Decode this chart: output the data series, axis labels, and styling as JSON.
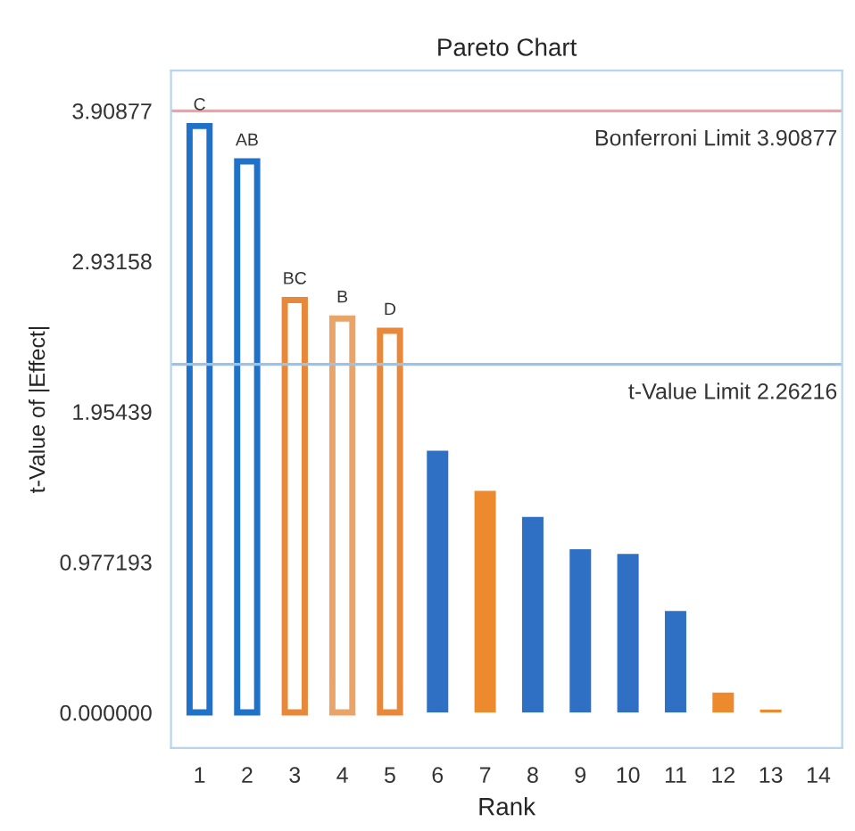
{
  "chart_data": {
    "type": "bar",
    "title": "Pareto Chart",
    "xlabel": "Rank",
    "ylabel": "t-Value of |Effect|",
    "categories": [
      "1",
      "2",
      "3",
      "4",
      "5",
      "6",
      "7",
      "8",
      "9",
      "10",
      "11",
      "12",
      "13",
      "14"
    ],
    "values": [
      3.81,
      3.58,
      2.68,
      2.56,
      2.48,
      1.7,
      1.44,
      1.27,
      1.06,
      1.03,
      0.66,
      0.13,
      0.02,
      null
    ],
    "colors": [
      "#1f72c8",
      "#1f72c8",
      "#e8883a",
      "#e9a46a",
      "#e8883a",
      "#2f6fc4",
      "#ee8a2e",
      "#2f6fc4",
      "#2f6fc4",
      "#2f6fc4",
      "#2f6fc4",
      "#ee8a2e",
      "#ee8a2e",
      "#2f6fc4"
    ],
    "ylim": [
      -0.23,
      4.17
    ],
    "yticks": [
      {
        "value": 0,
        "label": "0.000000"
      },
      0.977193,
      1.95439,
      2.93158,
      3.90877
    ],
    "ref_lines": [
      {
        "axis": "y",
        "value": 3.90877,
        "label": "Bonferroni Limit 3.90877",
        "color": "#f0a0a8"
      },
      {
        "axis": "y",
        "value": 2.26216,
        "label": "t-Value Limit 2.26216",
        "color": "#9cc3e6"
      }
    ],
    "annotations": [
      {
        "text": "C",
        "x": "1",
        "y": 3.81
      },
      {
        "text": "AB",
        "x": "2",
        "y": 3.58
      },
      {
        "text": "BC",
        "x": "3",
        "y": 2.68
      },
      {
        "text": "B",
        "x": "4",
        "y": 2.56
      },
      {
        "text": "D",
        "x": "5",
        "y": 2.48
      }
    ],
    "grid": false
  }
}
